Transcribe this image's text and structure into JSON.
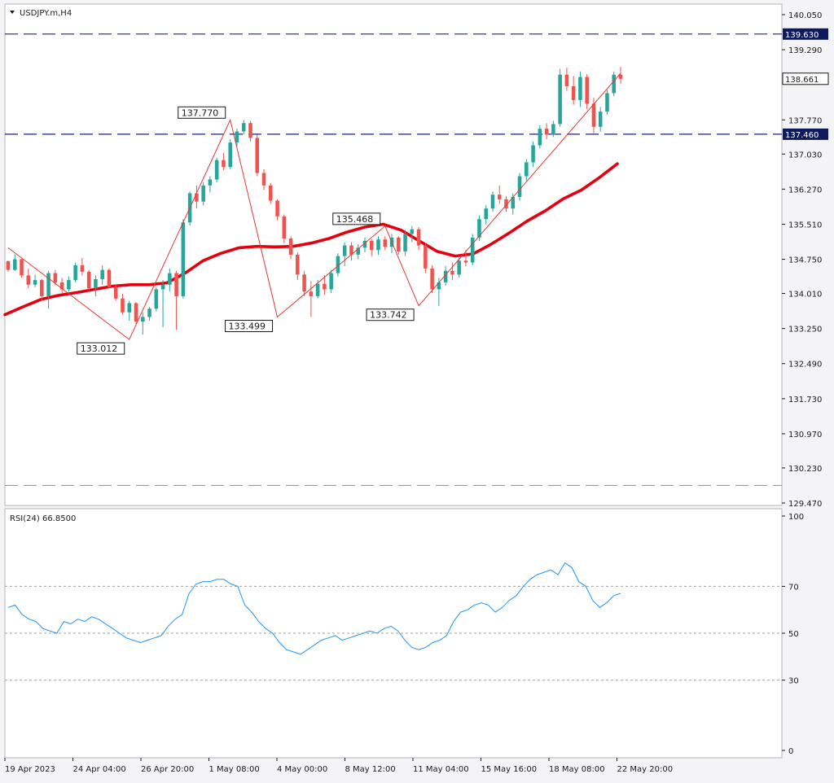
{
  "chart_data": [
    {
      "type": "candlestick",
      "title": "USDJPY.m,H4",
      "x_labels": [
        "19 Apr 2023",
        "24 Apr 04:00",
        "26 Apr 20:00",
        "1 May 08:00",
        "4 May 00:00",
        "8 May 12:00",
        "11 May 04:00",
        "15 May 16:00",
        "18 May 08:00",
        "22 May 20:00"
      ],
      "y_ticks": [
        140.05,
        139.29,
        137.77,
        137.03,
        136.27,
        135.51,
        134.75,
        134.01,
        133.25,
        132.49,
        131.73,
        130.97,
        130.23,
        129.47
      ],
      "y_tick_text": [
        "140.050",
        "139.290",
        "137.770",
        "137.030",
        "136.270",
        "135.510",
        "134.750",
        "134.010",
        "133.250",
        "132.490",
        "131.730",
        "130.970",
        "130.230",
        "129.470"
      ],
      "ylim": [
        129.47,
        140.05
      ],
      "current_price": "138.661",
      "horizontal_levels": [
        {
          "value": 139.63,
          "label": "139.630",
          "color": "#1a237e",
          "style": "dash"
        },
        {
          "value": 137.46,
          "label": "137.460",
          "color": "#1a237e",
          "style": "dash"
        },
        {
          "value": 129.85,
          "label": "",
          "color": "#9a9a9a",
          "style": "dash"
        }
      ],
      "pivots": [
        {
          "value": 133.012,
          "label": "133.012"
        },
        {
          "value": 137.77,
          "label": "137.770"
        },
        {
          "value": 133.499,
          "label": "133.499"
        },
        {
          "value": 135.468,
          "label": "135.468"
        },
        {
          "value": 133.742,
          "label": "133.742"
        }
      ],
      "zigzag_values": [
        135.0,
        133.012,
        137.77,
        133.499,
        135.468,
        133.742,
        138.78
      ],
      "moving_average": [
        133.55,
        133.72,
        133.88,
        133.97,
        134.03,
        134.1,
        134.17,
        134.2,
        134.2,
        134.24,
        134.45,
        134.72,
        134.88,
        135.0,
        135.03,
        135.02,
        135.03,
        135.1,
        135.2,
        135.34,
        135.45,
        135.51,
        135.38,
        135.15,
        134.92,
        134.82,
        134.87,
        135.08,
        135.32,
        135.58,
        135.8,
        136.06,
        136.25,
        136.52,
        136.82
      ],
      "candles": [
        [
          134.71,
          134.72,
          134.48,
          134.52
        ],
        [
          134.52,
          134.86,
          134.5,
          134.75
        ],
        [
          134.75,
          134.76,
          134.35,
          134.4
        ],
        [
          134.4,
          134.55,
          134.12,
          134.2
        ],
        [
          134.2,
          134.42,
          134.15,
          134.3
        ],
        [
          134.3,
          134.32,
          133.85,
          133.95
        ],
        [
          133.95,
          134.5,
          133.68,
          134.45
        ],
        [
          134.45,
          134.52,
          134.18,
          134.25
        ],
        [
          134.25,
          134.35,
          134.02,
          134.1
        ],
        [
          134.1,
          134.38,
          134.05,
          134.3
        ],
        [
          134.3,
          134.68,
          134.25,
          134.62
        ],
        [
          134.62,
          134.78,
          134.4,
          134.48
        ],
        [
          134.48,
          134.52,
          134.08,
          134.12
        ],
        [
          134.12,
          134.4,
          133.95,
          134.32
        ],
        [
          134.32,
          134.62,
          134.2,
          134.52
        ],
        [
          134.52,
          134.55,
          134.12,
          134.15
        ],
        [
          134.15,
          134.2,
          133.85,
          133.9
        ],
        [
          133.9,
          134.0,
          133.55,
          133.6
        ],
        [
          133.6,
          133.85,
          133.42,
          133.8
        ],
        [
          133.8,
          133.82,
          133.35,
          133.4
        ],
        [
          133.4,
          133.6,
          133.12,
          133.5
        ],
        [
          133.5,
          133.72,
          133.42,
          133.68
        ],
        [
          133.68,
          134.15,
          133.62,
          134.1
        ],
        [
          134.1,
          134.3,
          133.28,
          134.2
        ],
        [
          134.2,
          134.55,
          134.05,
          134.45
        ],
        [
          134.45,
          134.5,
          133.22,
          133.95
        ],
        [
          133.95,
          135.62,
          133.9,
          135.55
        ],
        [
          135.55,
          136.22,
          135.48,
          136.18
        ],
        [
          136.18,
          136.35,
          135.85,
          136.0
        ],
        [
          136.0,
          136.42,
          135.92,
          136.35
        ],
        [
          136.35,
          136.55,
          136.2,
          136.48
        ],
        [
          136.48,
          136.95,
          136.42,
          136.9
        ],
        [
          136.9,
          137.05,
          136.68,
          136.75
        ],
        [
          136.75,
          137.35,
          136.7,
          137.28
        ],
        [
          137.28,
          137.58,
          137.2,
          137.52
        ],
        [
          137.52,
          137.77,
          137.45,
          137.7
        ],
        [
          137.7,
          137.75,
          137.3,
          137.38
        ],
        [
          137.38,
          137.45,
          136.55,
          136.62
        ],
        [
          136.62,
          136.7,
          136.25,
          136.35
        ],
        [
          136.35,
          136.4,
          135.95,
          136.02
        ],
        [
          136.02,
          136.05,
          135.6,
          135.68
        ],
        [
          135.68,
          135.72,
          135.1,
          135.2
        ],
        [
          135.2,
          135.25,
          134.75,
          134.85
        ],
        [
          134.85,
          134.9,
          134.3,
          134.42
        ],
        [
          134.42,
          134.5,
          133.95,
          134.05
        ],
        [
          134.05,
          134.28,
          133.5,
          133.95
        ],
        [
          133.95,
          134.3,
          133.9,
          134.22
        ],
        [
          134.22,
          134.4,
          133.98,
          134.1
        ],
        [
          134.1,
          134.52,
          134.02,
          134.45
        ],
        [
          134.45,
          134.88,
          134.38,
          134.82
        ],
        [
          134.82,
          135.12,
          134.6,
          135.05
        ],
        [
          135.05,
          135.12,
          134.72,
          134.85
        ],
        [
          134.85,
          135.08,
          134.75,
          135.0
        ],
        [
          135.0,
          135.22,
          134.9,
          135.15
        ],
        [
          135.15,
          135.18,
          134.82,
          134.95
        ],
        [
          134.95,
          135.25,
          134.85,
          135.18
        ],
        [
          135.18,
          135.25,
          134.95,
          135.02
        ],
        [
          135.02,
          135.3,
          134.88,
          135.22
        ],
        [
          135.22,
          135.25,
          134.85,
          134.92
        ],
        [
          134.92,
          135.38,
          134.82,
          135.3
        ],
        [
          135.3,
          135.47,
          135.12,
          135.4
        ],
        [
          135.4,
          135.45,
          134.95,
          135.05
        ],
        [
          135.05,
          135.1,
          134.45,
          134.55
        ],
        [
          134.55,
          134.62,
          134.02,
          134.1
        ],
        [
          134.1,
          134.35,
          133.74,
          134.25
        ],
        [
          134.25,
          134.6,
          134.18,
          134.5
        ],
        [
          134.5,
          134.68,
          134.3,
          134.42
        ],
        [
          134.42,
          134.8,
          134.35,
          134.72
        ],
        [
          134.72,
          134.95,
          134.6,
          134.68
        ],
        [
          134.68,
          135.3,
          134.62,
          135.22
        ],
        [
          135.22,
          135.7,
          135.15,
          135.62
        ],
        [
          135.62,
          135.92,
          135.5,
          135.85
        ],
        [
          135.85,
          136.22,
          135.78,
          136.15
        ],
        [
          136.15,
          136.35,
          135.95,
          136.05
        ],
        [
          136.05,
          136.12,
          135.78,
          135.85
        ],
        [
          135.85,
          136.18,
          135.72,
          136.1
        ],
        [
          136.1,
          136.62,
          136.02,
          136.55
        ],
        [
          136.55,
          136.92,
          136.45,
          136.85
        ],
        [
          136.85,
          137.3,
          136.75,
          137.22
        ],
        [
          137.22,
          137.65,
          137.15,
          137.58
        ],
        [
          137.58,
          137.7,
          137.35,
          137.45
        ],
        [
          137.45,
          137.75,
          137.4,
          137.68
        ],
        [
          137.68,
          138.88,
          137.62,
          138.75
        ],
        [
          138.75,
          138.9,
          138.4,
          138.5
        ],
        [
          138.5,
          138.72,
          138.1,
          138.2
        ],
        [
          138.2,
          138.82,
          138.05,
          138.7
        ],
        [
          138.7,
          138.76,
          138.0,
          138.12
        ],
        [
          138.12,
          138.25,
          137.48,
          137.62
        ],
        [
          137.62,
          138.05,
          137.52,
          137.95
        ],
        [
          137.95,
          138.42,
          137.88,
          138.35
        ],
        [
          138.35,
          138.82,
          138.28,
          138.75
        ],
        [
          138.75,
          138.92,
          138.55,
          138.66
        ]
      ]
    },
    {
      "type": "line",
      "title": "RSI(24) 66.8500",
      "ylim": [
        0,
        100
      ],
      "y_ticks": [
        100,
        70,
        50,
        30,
        0
      ],
      "y_tick_text": [
        "100",
        "70",
        "50",
        "30",
        "0"
      ],
      "levels": [
        70,
        50,
        30
      ],
      "series": [
        {
          "values": [
            61,
            62,
            58,
            56,
            55,
            52,
            51,
            50,
            55,
            54,
            56,
            55,
            57,
            56,
            54,
            52,
            50,
            48,
            47,
            46,
            47,
            48,
            49,
            53,
            56,
            58,
            67,
            71,
            72,
            72,
            73,
            73,
            71,
            70,
            62,
            59,
            55,
            52,
            50,
            46,
            43,
            42,
            41,
            43,
            45,
            47,
            48,
            49,
            47,
            48,
            49,
            50,
            51,
            50,
            52,
            53,
            51,
            47,
            44,
            43,
            44,
            46,
            47,
            49,
            55,
            59,
            60,
            62,
            63,
            62,
            59,
            61,
            64,
            66,
            70,
            73,
            75,
            76,
            77,
            75,
            80,
            78,
            72,
            70,
            64,
            61,
            63,
            66,
            67
          ]
        }
      ]
    }
  ],
  "colors": {
    "bull": "#26a69a",
    "bear": "#ef5350",
    "ma": "#e3000f",
    "zigzag": "#e53935",
    "rsi": "#2196f3",
    "level_line": "#1a237e",
    "badge_bg": "#0d1b5e"
  },
  "icons": {
    "title_marker": "triangle-down-icon"
  }
}
